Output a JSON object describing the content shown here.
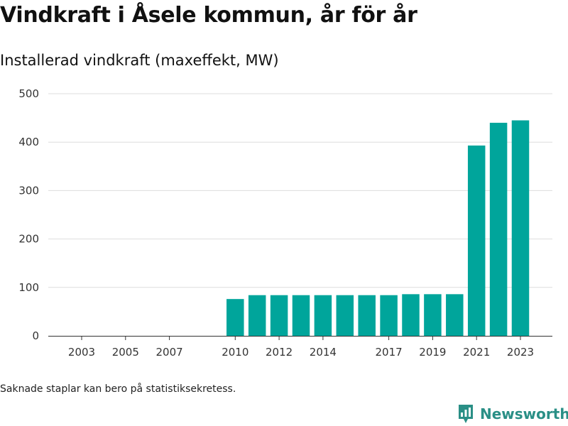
{
  "title": "Vindkraft i Åsele kommun, år för år",
  "subtitle": "Installerad vindkraft (maxeffekt, MW)",
  "footnote": "Saknade staplar kan bero på statistiksekretess.",
  "brand": {
    "name": "Newsworthy",
    "icon": "bar-chart-pin-icon"
  },
  "colors": {
    "bar": "#00a59b",
    "grid": "#dddddd",
    "axis": "#333333",
    "brand": "#2a8f86"
  },
  "chart_data": {
    "type": "bar",
    "categories": [
      "2003",
      "2004",
      "2005",
      "2006",
      "2007",
      "2008",
      "2009",
      "2010",
      "2011",
      "2012",
      "2013",
      "2014",
      "2015",
      "2016",
      "2017",
      "2018",
      "2019",
      "2020",
      "2021",
      "2022",
      "2023"
    ],
    "values": [
      null,
      null,
      null,
      null,
      null,
      null,
      null,
      76,
      84,
      84,
      84,
      84,
      84,
      84,
      84,
      86,
      86,
      86,
      393,
      440,
      445
    ],
    "xticks": [
      "2003",
      "2005",
      "2007",
      "2010",
      "2012",
      "2014",
      "2017",
      "2019",
      "2021",
      "2023"
    ],
    "yticks": [
      0,
      100,
      200,
      300,
      400,
      500
    ],
    "ylim": [
      0,
      500
    ],
    "xlabel": "",
    "ylabel": "",
    "grid": true,
    "legend": "none"
  }
}
